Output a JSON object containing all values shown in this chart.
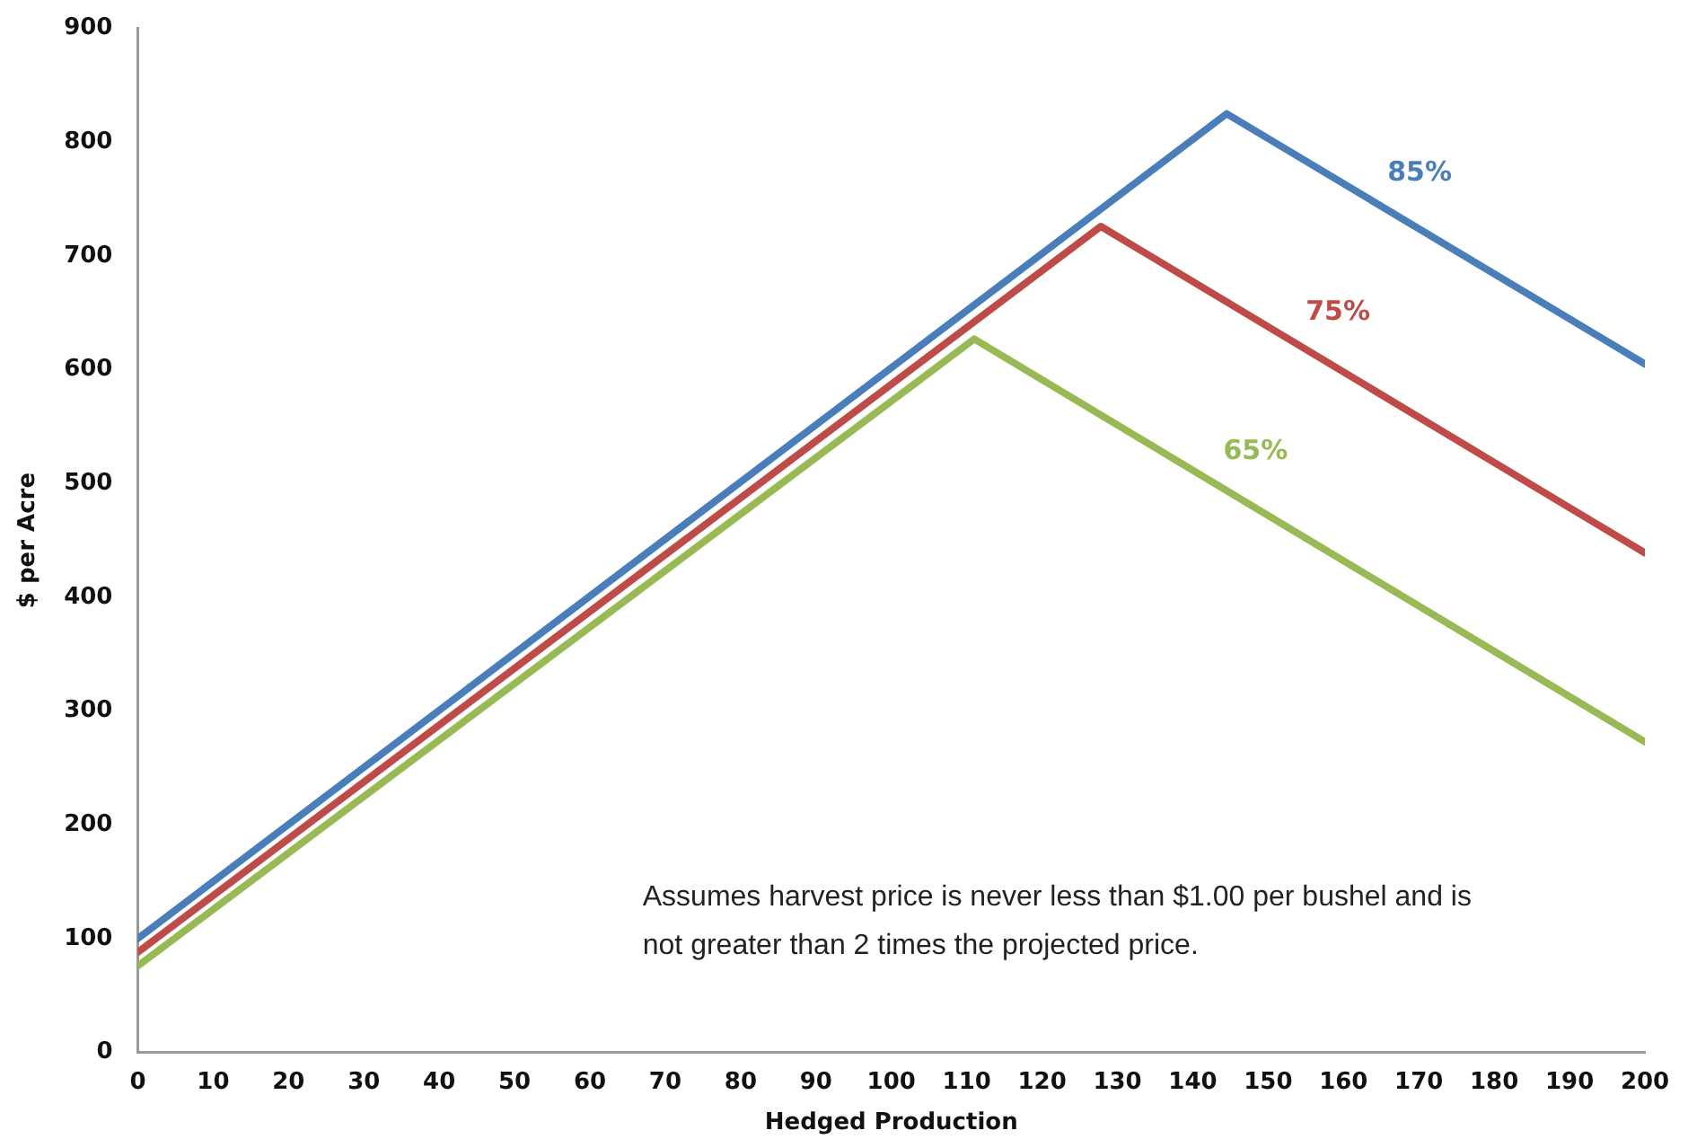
{
  "chart_data": {
    "type": "line",
    "xlabel": "Hedged Production",
    "ylabel": "$ per Acre",
    "xlim": [
      0,
      200
    ],
    "xticks": [
      0,
      10,
      20,
      30,
      40,
      50,
      60,
      70,
      80,
      90,
      100,
      110,
      120,
      130,
      140,
      150,
      160,
      170,
      180,
      190,
      200
    ],
    "ylim": [
      0,
      900
    ],
    "yticks": [
      0,
      100,
      200,
      300,
      400,
      500,
      600,
      700,
      800,
      900
    ],
    "grid": false,
    "legend": false,
    "marker": "none",
    "line_style": "solid",
    "series": [
      {
        "name": "85%",
        "color": "#4a7ebb",
        "x": [
          0,
          144.5,
          200
        ],
        "values": [
          100,
          825,
          605
        ]
      },
      {
        "name": "75%",
        "color": "#be4b48",
        "x": [
          0,
          127.8,
          200
        ],
        "values": [
          88,
          726,
          439
        ]
      },
      {
        "name": "65%",
        "color": "#98b954",
        "x": [
          0,
          111,
          200
        ],
        "values": [
          76,
          627,
          273
        ]
      }
    ],
    "annotations": [
      "Assumes harvest price is never less than $1.00 per bushel and is not greater than 2 times the projected price."
    ]
  }
}
